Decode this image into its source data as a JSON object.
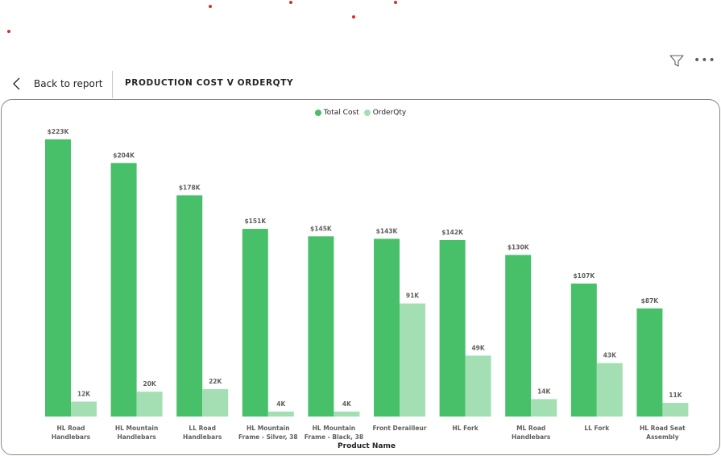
{
  "header": {
    "back_label": "Back to report",
    "title": "PRODUCTION COST V ORDERQTY"
  },
  "icons": {
    "back": "chevron-left-icon",
    "filter": "filter-icon",
    "more": "more-options-icon"
  },
  "colors": {
    "total_cost": "#48bf69",
    "order_qty": "#a3dfb2",
    "marker_dots": "#d32f2f"
  },
  "chart_data": {
    "type": "bar",
    "title": "",
    "xlabel": "Product Name",
    "ylabel": "",
    "legend_position": "top-center",
    "grid": false,
    "ylim": [
      0,
      240000
    ],
    "categories": [
      [
        "HL Road",
        "Handlebars"
      ],
      [
        "HL Mountain",
        "Handlebars"
      ],
      [
        "LL Road",
        "Handlebars"
      ],
      [
        "HL Mountain",
        "Frame - Silver, 38"
      ],
      [
        "HL Mountain",
        "Frame - Black, 38"
      ],
      [
        "Front Derailleur"
      ],
      [
        "HL Fork"
      ],
      [
        "ML Road",
        "Handlebars"
      ],
      [
        "LL Fork"
      ],
      [
        "HL Road Seat",
        "Assembly"
      ]
    ],
    "series": [
      {
        "name": "Total Cost",
        "color": "#48bf69",
        "values": [
          223000,
          204000,
          178000,
          151000,
          145000,
          143000,
          142000,
          130000,
          107000,
          87000
        ],
        "labels": [
          "$223K",
          "$204K",
          "$178K",
          "$151K",
          "$145K",
          "$143K",
          "$142K",
          "$130K",
          "$107K",
          "$87K"
        ]
      },
      {
        "name": "OrderQty",
        "color": "#a3dfb2",
        "values": [
          12000,
          20000,
          22000,
          4000,
          4000,
          91000,
          49000,
          14000,
          43000,
          11000
        ],
        "labels": [
          "12K",
          "20K",
          "22K",
          "4K",
          "4K",
          "91K",
          "49K",
          "14K",
          "43K",
          "11K"
        ]
      }
    ]
  }
}
